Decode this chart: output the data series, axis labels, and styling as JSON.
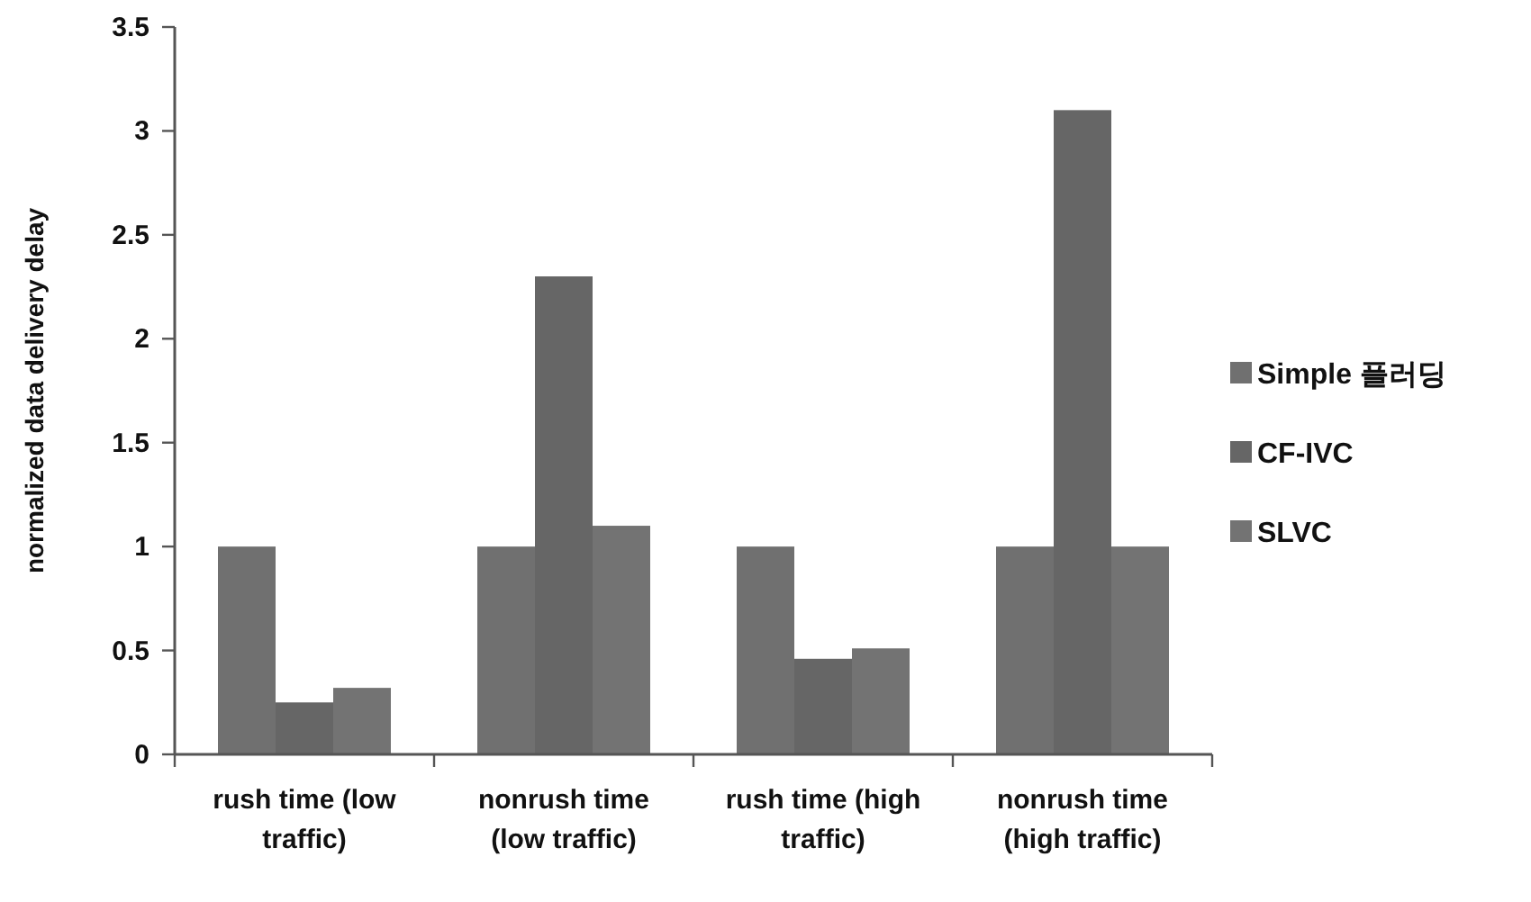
{
  "chart_data": {
    "type": "bar",
    "ylabel": "normalized data delivery delay",
    "categories": [
      "rush time (low traffic)",
      "nonrush time (low traffic)",
      "rush time (high traffic)",
      "nonrush time (high traffic)"
    ],
    "series": [
      {
        "name": "Simple 플러딩",
        "color": "#707070",
        "values": [
          1,
          1,
          1,
          1
        ]
      },
      {
        "name": "CF-IVC",
        "color": "#666666",
        "values": [
          0.25,
          2.3,
          0.46,
          3.1
        ]
      },
      {
        "name": "SLVC",
        "color": "#737373",
        "values": [
          0.32,
          1.1,
          0.51,
          1.0
        ]
      }
    ],
    "ylim": [
      0,
      3.5
    ],
    "yticks": [
      0,
      0.5,
      1,
      1.5,
      2,
      2.5,
      3,
      3.5
    ],
    "grid": false,
    "legend": "right"
  }
}
